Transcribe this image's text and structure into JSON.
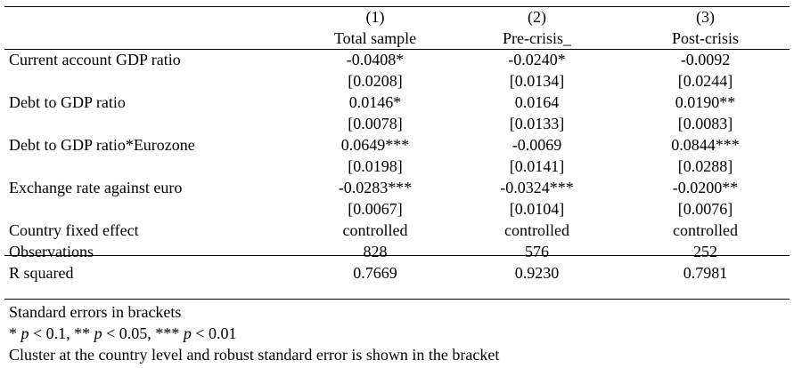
{
  "header": {
    "col_numbers": [
      "(1)",
      "(2)",
      "(3)"
    ],
    "col_names": [
      "Total sample",
      "Pre-crisis_",
      "Post-crisis"
    ]
  },
  "rows": [
    {
      "label": "Current account GDP ratio",
      "values": [
        "-0.0408*",
        "-0.0240*",
        "-0.0092"
      ]
    },
    {
      "label": "",
      "values": [
        "[0.0208]",
        "[0.0134]",
        "[0.0244]"
      ]
    },
    {
      "label": "Debt to GDP ratio",
      "values": [
        "0.0146*",
        "0.0164",
        "0.0190**"
      ]
    },
    {
      "label": "",
      "values": [
        "[0.0078]",
        "[0.0133]",
        "[0.0083]"
      ]
    },
    {
      "label": "Debt to GDP ratio*Eurozone",
      "values": [
        "0.0649***",
        "-0.0069",
        "0.0844***"
      ]
    },
    {
      "label": "",
      "values": [
        "[0.0198]",
        "[0.0141]",
        "[0.0288]"
      ]
    },
    {
      "label": "Exchange rate against euro",
      "values": [
        "-0.0283***",
        "-0.0324***",
        "-0.0200**"
      ]
    },
    {
      "label": "",
      "values": [
        "[0.0067]",
        "[0.0104]",
        "[0.0076]"
      ]
    },
    {
      "label": "Country fixed effect",
      "values": [
        "controlled",
        "controlled",
        "controlled"
      ]
    }
  ],
  "stats": [
    {
      "label": "Observations",
      "values": [
        "828",
        "576",
        "252"
      ]
    },
    {
      "label": "R squared",
      "values": [
        "0.7669",
        "0.9230",
        "0.7981"
      ]
    }
  ],
  "notes": {
    "line1": "Standard errors in brackets",
    "sig": [
      {
        "prefix": "* ",
        "var": "p",
        "suffix": " < 0.1, "
      },
      {
        "prefix": "** ",
        "var": "p",
        "suffix": " < 0.05, "
      },
      {
        "prefix": "*** ",
        "var": "p",
        "suffix": " < 0.01"
      }
    ],
    "line3": "Cluster at the country level and robust standard error is shown in the bracket"
  }
}
